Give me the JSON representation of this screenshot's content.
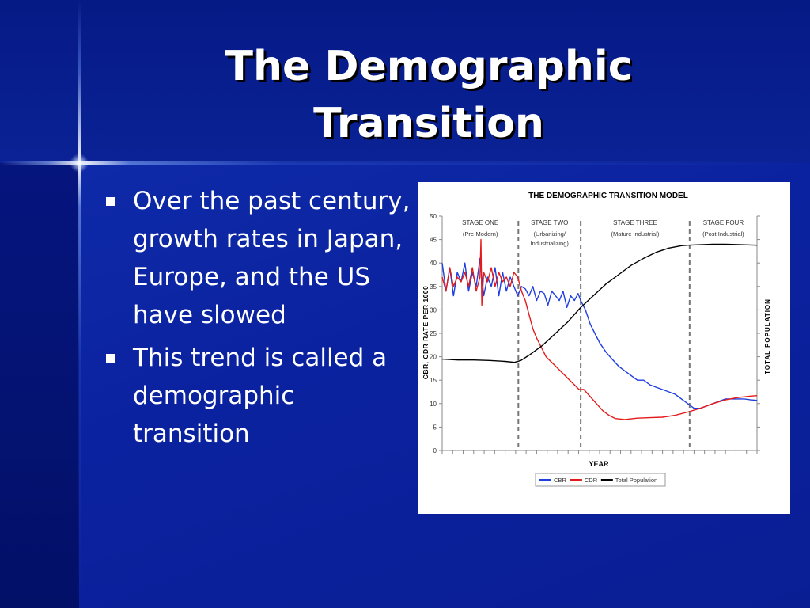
{
  "slide": {
    "title_line1": "The Demographic",
    "title_line2": "Transition",
    "bullets": [
      "Over the past century, growth rates in Japan, Europe, and the US have slowed",
      "This trend is called a demographic transition"
    ]
  },
  "colors": {
    "background": "#00127a",
    "title_text": "#ffffff",
    "cbr": "#1f3fe0",
    "cdr": "#e51a1a",
    "population": "#000000"
  },
  "chart_data": {
    "type": "line",
    "title": "THE DEMOGRAPHIC TRANSITION MODEL",
    "xlabel": "YEAR",
    "ylabel": "CBR, CDR RATE PER 1000",
    "y2label": "TOTAL POPULATION",
    "ylim": [
      0,
      50
    ],
    "yticks": [
      "0",
      "5",
      "10",
      "15",
      "20",
      "25",
      "30",
      "35",
      "40",
      "45",
      "50"
    ],
    "xlim": [
      0,
      100
    ],
    "x_tick_count": 31,
    "grid": false,
    "legend_position": "bottom",
    "stages": [
      {
        "name": "STAGE ONE",
        "detail": [
          "(Pre-Modern)"
        ],
        "x_start": 0,
        "x_end": 24.2
      },
      {
        "name": "STAGE TWO",
        "detail": [
          "(Urbanizing/",
          "Industrializing)"
        ],
        "x_start": 24.2,
        "x_end": 44
      },
      {
        "name": "STAGE THREE",
        "detail": [
          "(Mature Industrial)"
        ],
        "x_start": 44,
        "x_end": 78.6
      },
      {
        "name": "STAGE FOUR",
        "detail": [
          "(Post Industrial)"
        ],
        "x_start": 78.6,
        "x_end": 100
      }
    ],
    "stage_boundaries": [
      24.2,
      44,
      78.6
    ],
    "series": [
      {
        "name": "CBR",
        "color": "#1f3fe0",
        "x": [
          0,
          1.2,
          2.4,
          3.6,
          4.8,
          6,
          7.2,
          8.4,
          9.6,
          10.8,
          12,
          13.2,
          14.4,
          15.6,
          16.8,
          18,
          19.2,
          20.4,
          21.6,
          22.8,
          24,
          25.2,
          26.4,
          27.6,
          28.8,
          30,
          31.2,
          32.4,
          33.6,
          34.8,
          36,
          37.2,
          38.4,
          39.6,
          40.8,
          42,
          43.2,
          44,
          45.5,
          47,
          48.5,
          50,
          52,
          54,
          56,
          58,
          60,
          62,
          64,
          66,
          68,
          70,
          72,
          74,
          76,
          78,
          80,
          82,
          84,
          86,
          88,
          90,
          92,
          94,
          96,
          98,
          100
        ],
        "y": [
          40,
          34,
          39,
          33,
          38,
          36,
          40,
          34,
          38,
          35,
          41,
          33,
          37,
          35,
          39,
          33,
          38,
          34,
          37,
          35,
          33,
          35,
          34.5,
          33,
          35,
          32,
          34,
          33.5,
          31,
          34,
          33,
          32,
          34,
          30.5,
          33,
          32,
          33.5,
          32,
          30,
          27,
          25,
          23,
          21,
          19.5,
          18,
          17,
          16,
          15,
          15,
          14,
          13.5,
          13,
          12.5,
          12,
          11,
          10,
          9,
          9,
          9.5,
          10,
          10.5,
          11,
          11,
          11,
          11,
          10.8,
          10.7
        ]
      },
      {
        "name": "CDR",
        "color": "#e51a1a",
        "x": [
          0,
          1.2,
          2.4,
          3.6,
          4.8,
          6,
          7.2,
          8.4,
          9.6,
          10.8,
          12,
          12.3,
          12.6,
          13.2,
          14.4,
          15.6,
          16.8,
          18,
          19.2,
          20.4,
          21.6,
          22.8,
          24,
          25.2,
          26.4,
          27.6,
          28.8,
          30,
          31.5,
          33,
          34.5,
          36,
          37.5,
          39,
          40.5,
          42,
          43.5,
          45,
          47,
          49,
          51,
          53,
          55,
          58,
          62,
          66,
          70,
          74,
          78,
          82,
          86,
          90,
          94,
          98,
          100
        ],
        "y": [
          37,
          34,
          39,
          35,
          37,
          36,
          38,
          35,
          39,
          34,
          37,
          45,
          31,
          38,
          36,
          39,
          35,
          38,
          36,
          37,
          35,
          38,
          37,
          34,
          32,
          29,
          26,
          24,
          22,
          20,
          19,
          18,
          17,
          16,
          15,
          14,
          13,
          13,
          11.5,
          10,
          8.5,
          7.5,
          6.8,
          6.6,
          6.9,
          7,
          7.1,
          7.5,
          8.2,
          9,
          10,
          10.8,
          11.3,
          11.6,
          11.7
        ]
      },
      {
        "name": "Total Population",
        "color": "#000000",
        "x": [
          0,
          5,
          10,
          15,
          20,
          23,
          25,
          28,
          32,
          36,
          40,
          44,
          48,
          52,
          56,
          60,
          64,
          68,
          72,
          76,
          78,
          82,
          86,
          90,
          95,
          100
        ],
        "y": [
          19.5,
          19.3,
          19.3,
          19.2,
          19,
          18.8,
          19.2,
          20.5,
          22.5,
          25,
          27.5,
          30.5,
          33,
          35.5,
          37.5,
          39.5,
          41,
          42.3,
          43.2,
          43.7,
          43.8,
          43.9,
          44,
          44,
          43.9,
          43.8
        ]
      }
    ]
  }
}
